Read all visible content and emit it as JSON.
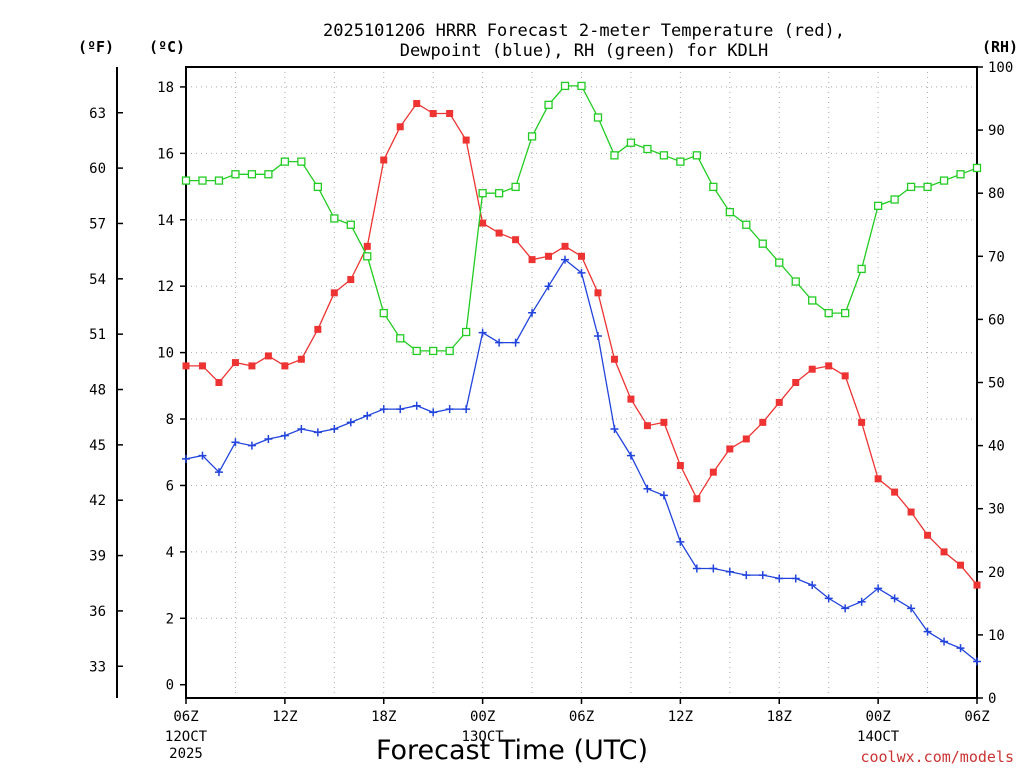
{
  "chart_data": {
    "type": "line",
    "title": [
      "2025101206 HRRR Forecast 2-meter Temperature (red),",
      "Dewpoint (blue), RH (green) for KDLH"
    ],
    "xlabel": "Forecast Time (UTC)",
    "units": {
      "fahrenheit": "(ºF)",
      "celsius": "(ºC)",
      "rh": "(RH)"
    },
    "x_range_hours": [
      0,
      48
    ],
    "x_ticks": [
      {
        "hour": 0,
        "label": "06Z",
        "sub": [
          "12OCT",
          "2025"
        ]
      },
      {
        "hour": 6,
        "label": "12Z",
        "sub": []
      },
      {
        "hour": 12,
        "label": "18Z",
        "sub": []
      },
      {
        "hour": 18,
        "label": "00Z",
        "sub": [
          "13OCT"
        ]
      },
      {
        "hour": 24,
        "label": "06Z",
        "sub": []
      },
      {
        "hour": 30,
        "label": "12Z",
        "sub": []
      },
      {
        "hour": 36,
        "label": "18Z",
        "sub": []
      },
      {
        "hour": 42,
        "label": "00Z",
        "sub": [
          "14OCT"
        ]
      },
      {
        "hour": 48,
        "label": "06Z",
        "sub": []
      }
    ],
    "ylim_c": [
      -0.4,
      18.6
    ],
    "yticks_c": [
      "0",
      "2",
      "4",
      "6",
      "8",
      "10",
      "12",
      "14",
      "16",
      "18"
    ],
    "yticks_f": [
      "33",
      "36",
      "39",
      "42",
      "45",
      "48",
      "51",
      "54",
      "57",
      "60",
      "63"
    ],
    "ylim_rh": [
      0,
      100
    ],
    "yticks_rh": [
      "0",
      "10",
      "20",
      "30",
      "40",
      "50",
      "60",
      "70",
      "80",
      "90",
      "100"
    ],
    "series": [
      {
        "name": "Temperature",
        "axis": "celsius",
        "color": "#ee3333",
        "marker": "filled-square",
        "values": [
          9.6,
          9.6,
          9.1,
          9.7,
          9.6,
          9.9,
          9.6,
          9.8,
          10.7,
          11.8,
          12.2,
          13.2,
          15.8,
          16.8,
          17.5,
          17.2,
          17.2,
          16.4,
          13.9,
          13.6,
          13.4,
          12.8,
          12.9,
          13.2,
          12.9,
          11.8,
          9.8,
          8.6,
          7.8,
          7.9,
          6.6,
          5.6,
          6.4,
          7.1,
          7.4,
          7.9,
          8.5,
          9.1,
          9.5,
          9.6,
          9.3,
          7.9,
          6.2,
          5.8,
          5.2,
          4.5,
          4.0,
          3.6,
          3.0
        ]
      },
      {
        "name": "Dewpoint",
        "axis": "celsius",
        "color": "#2244dd",
        "marker": "plus",
        "values": [
          6.8,
          6.9,
          6.4,
          7.3,
          7.2,
          7.4,
          7.5,
          7.7,
          7.6,
          7.7,
          7.9,
          8.1,
          8.3,
          8.3,
          8.4,
          8.2,
          8.3,
          8.3,
          10.6,
          10.3,
          10.3,
          11.2,
          12.0,
          12.8,
          12.4,
          10.5,
          7.7,
          6.9,
          5.9,
          5.7,
          4.3,
          3.5,
          3.5,
          3.4,
          3.3,
          3.3,
          3.2,
          3.2,
          3.0,
          2.6,
          2.3,
          2.5,
          2.9,
          2.6,
          2.3,
          1.6,
          1.3,
          1.1,
          0.7
        ]
      },
      {
        "name": "RH",
        "axis": "rh",
        "color": "#22cc22",
        "marker": "open-square",
        "values": [
          82,
          82,
          82,
          83,
          83,
          83,
          85,
          85,
          81,
          76,
          75,
          70,
          61,
          57,
          55,
          55,
          55,
          58,
          80,
          80,
          81,
          89,
          94,
          97,
          97,
          92,
          86,
          88,
          87,
          86,
          85,
          86,
          81,
          77,
          75,
          72,
          69,
          66,
          63,
          61,
          61,
          68,
          78,
          79,
          81,
          81,
          82,
          83,
          84
        ]
      }
    ]
  },
  "credit": "coolwx.com/models"
}
